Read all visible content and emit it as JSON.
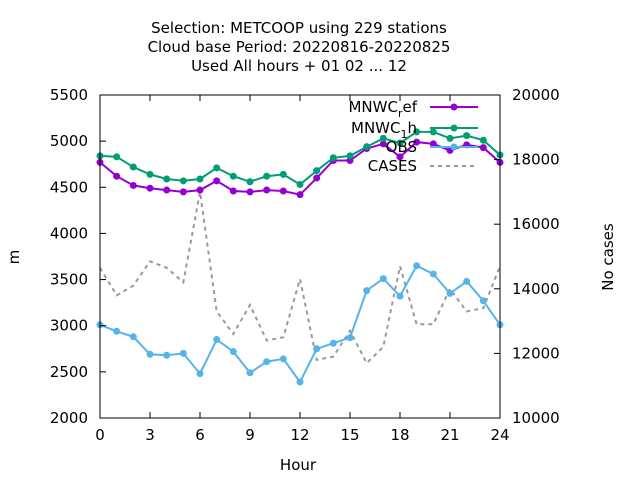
{
  "chart_data": {
    "type": "line",
    "title_lines": [
      "Selection: METCOOP using   229 stations",
      "Cloud base   Period: 20220816-20220825",
      "Used  All hours + 01 02 ... 12"
    ],
    "xlabel": "Hour",
    "ylabel": "m",
    "y2label": "No cases",
    "xlim": [
      0,
      24
    ],
    "ylim": [
      2000,
      5500
    ],
    "y2lim": [
      10000,
      20000
    ],
    "x_ticks": [
      "0",
      "3",
      "6",
      "9",
      "12",
      "15",
      "18",
      "21",
      "24"
    ],
    "y_ticks": [
      "2000",
      "2500",
      "3000",
      "3500",
      "4000",
      "4500",
      "5000",
      "5500"
    ],
    "y2_ticks": [
      "10000",
      "12000",
      "14000",
      "16000",
      "18000",
      "20000"
    ],
    "x": [
      0,
      1,
      2,
      3,
      4,
      5,
      6,
      7,
      8,
      9,
      10,
      11,
      12,
      13,
      14,
      15,
      16,
      17,
      18,
      19,
      20,
      21,
      22,
      23,
      24
    ],
    "legend_position": "top-right",
    "series": [
      {
        "name_main": "MNWC",
        "name_sub": "r",
        "name_tail": "ef",
        "color": "#9400d3",
        "axis": "y1",
        "values": [
          4770,
          4620,
          4520,
          4490,
          4470,
          4450,
          4470,
          4570,
          4460,
          4450,
          4470,
          4460,
          4420,
          4600,
          4790,
          4790,
          4920,
          4970,
          4830,
          4990,
          4970,
          4900,
          4960,
          4930,
          4770
        ]
      },
      {
        "name_main": "MNWC",
        "name_sub": "1",
        "name_tail": "h",
        "color": "#009e73",
        "axis": "y1",
        "values": [
          4840,
          4830,
          4720,
          4640,
          4590,
          4570,
          4590,
          4710,
          4620,
          4560,
          4620,
          4640,
          4530,
          4680,
          4820,
          4840,
          4940,
          5030,
          4980,
          5100,
          5100,
          5030,
          5060,
          5010,
          4850
        ]
      },
      {
        "name": "OBS",
        "color": "#56b4e9",
        "axis": "y1",
        "values": [
          3010,
          2940,
          2880,
          2690,
          2680,
          2700,
          2480,
          2850,
          2720,
          2490,
          2610,
          2640,
          2390,
          2750,
          2810,
          2870,
          3380,
          3510,
          3320,
          3650,
          3560,
          3350,
          3480,
          3270,
          3010
        ]
      },
      {
        "name": "CASES",
        "color": "#999999",
        "axis": "y2",
        "dashed": true,
        "values": [
          14650,
          13800,
          14100,
          14850,
          14650,
          14200,
          17000,
          13300,
          12600,
          13500,
          12400,
          12500,
          14300,
          11800,
          11900,
          12700,
          11700,
          12200,
          14700,
          12900,
          12900,
          14000,
          13300,
          13400,
          14700
        ]
      }
    ]
  }
}
